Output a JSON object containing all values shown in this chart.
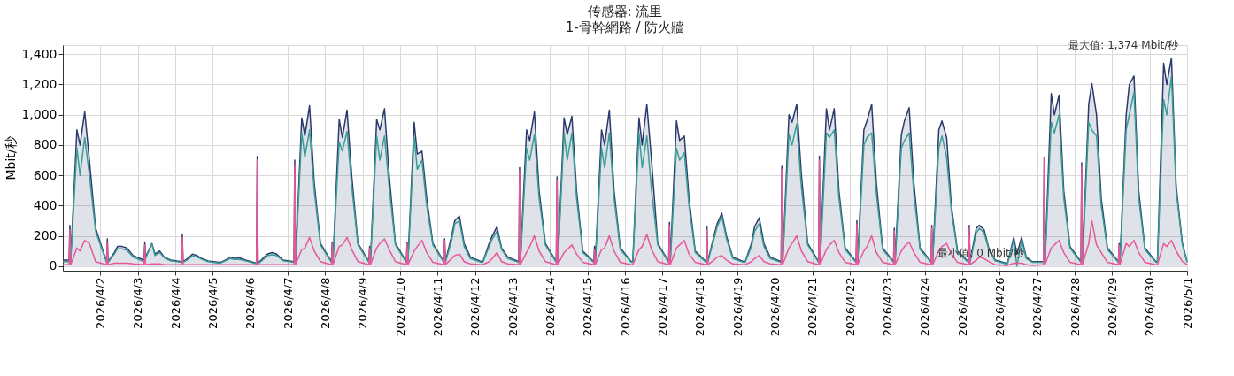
{
  "chart_data": {
    "type": "line",
    "title": "传感器: 流里",
    "subtitle": "1-骨幹網路 / 防火牆",
    "ylabel": "Mbit/秒",
    "x": [
      "2026-04-01T00:00",
      "2026-04-01T04:00",
      "2026-04-01T04:30",
      "2026-04-01T05:00",
      "2026-04-01T09:00",
      "2026-04-01T11:00",
      "2026-04-01T14:00",
      "2026-04-01T17:00",
      "2026-04-01T21:00",
      "2026-04-02T04:00",
      "2026-04-02T04:30",
      "2026-04-02T05:00",
      "2026-04-02T09:00",
      "2026-04-02T11:00",
      "2026-04-02T14:00",
      "2026-04-02T17:00",
      "2026-04-02T21:00",
      "2026-04-03T04:00",
      "2026-04-03T04:30",
      "2026-04-03T05:00",
      "2026-04-03T09:00",
      "2026-04-03T11:00",
      "2026-04-03T14:00",
      "2026-04-03T17:00",
      "2026-04-03T21:00",
      "2026-04-04T04:00",
      "2026-04-04T04:30",
      "2026-04-04T05:00",
      "2026-04-04T09:00",
      "2026-04-04T11:00",
      "2026-04-04T14:00",
      "2026-04-04T17:00",
      "2026-04-04T21:00",
      "2026-04-05T04:00",
      "2026-04-05T04:30",
      "2026-04-05T05:00",
      "2026-04-05T09:00",
      "2026-04-05T11:00",
      "2026-04-05T14:00",
      "2026-04-05T17:00",
      "2026-04-05T21:00",
      "2026-04-06T04:00",
      "2026-04-06T04:30",
      "2026-04-06T05:00",
      "2026-04-06T09:00",
      "2026-04-06T11:00",
      "2026-04-06T14:00",
      "2026-04-06T17:00",
      "2026-04-06T21:00",
      "2026-04-07T04:00",
      "2026-04-07T04:30",
      "2026-04-07T05:00",
      "2026-04-07T09:00",
      "2026-04-07T11:00",
      "2026-04-07T14:00",
      "2026-04-07T17:00",
      "2026-04-07T21:00",
      "2026-04-08T04:00",
      "2026-04-08T04:30",
      "2026-04-08T05:00",
      "2026-04-08T09:00",
      "2026-04-08T11:00",
      "2026-04-08T14:00",
      "2026-04-08T17:00",
      "2026-04-08T21:00",
      "2026-04-09T04:00",
      "2026-04-09T04:30",
      "2026-04-09T05:00",
      "2026-04-09T09:00",
      "2026-04-09T11:00",
      "2026-04-09T14:00",
      "2026-04-09T17:00",
      "2026-04-09T21:00",
      "2026-04-10T04:00",
      "2026-04-10T04:30",
      "2026-04-10T05:00",
      "2026-04-10T09:00",
      "2026-04-10T11:00",
      "2026-04-10T14:00",
      "2026-04-10T17:00",
      "2026-04-10T21:00",
      "2026-04-11T04:00",
      "2026-04-11T04:30",
      "2026-04-11T05:00",
      "2026-04-11T09:00",
      "2026-04-11T11:00",
      "2026-04-11T14:00",
      "2026-04-11T17:00",
      "2026-04-11T21:00",
      "2026-04-12T04:00",
      "2026-04-12T04:30",
      "2026-04-12T05:00",
      "2026-04-12T09:00",
      "2026-04-12T11:00",
      "2026-04-12T14:00",
      "2026-04-12T17:00",
      "2026-04-12T21:00",
      "2026-04-13T04:00",
      "2026-04-13T04:30",
      "2026-04-13T05:00",
      "2026-04-13T09:00",
      "2026-04-13T11:00",
      "2026-04-13T14:00",
      "2026-04-13T17:00",
      "2026-04-13T21:00",
      "2026-04-14T04:00",
      "2026-04-14T04:30",
      "2026-04-14T05:00",
      "2026-04-14T09:00",
      "2026-04-14T11:00",
      "2026-04-14T14:00",
      "2026-04-14T17:00",
      "2026-04-14T21:00",
      "2026-04-15T04:00",
      "2026-04-15T04:30",
      "2026-04-15T05:00",
      "2026-04-15T09:00",
      "2026-04-15T11:00",
      "2026-04-15T14:00",
      "2026-04-15T17:00",
      "2026-04-15T21:00",
      "2026-04-16T04:00",
      "2026-04-16T04:30",
      "2026-04-16T05:00",
      "2026-04-16T09:00",
      "2026-04-16T11:00",
      "2026-04-16T14:00",
      "2026-04-16T17:00",
      "2026-04-16T21:00",
      "2026-04-17T04:00",
      "2026-04-17T04:30",
      "2026-04-17T05:00",
      "2026-04-17T09:00",
      "2026-04-17T11:00",
      "2026-04-17T14:00",
      "2026-04-17T17:00",
      "2026-04-17T21:00",
      "2026-04-18T04:00",
      "2026-04-18T04:30",
      "2026-04-18T05:00",
      "2026-04-18T09:00",
      "2026-04-18T11:00",
      "2026-04-18T14:00",
      "2026-04-18T17:00",
      "2026-04-18T21:00",
      "2026-04-19T04:00",
      "2026-04-19T04:30",
      "2026-04-19T05:00",
      "2026-04-19T09:00",
      "2026-04-19T11:00",
      "2026-04-19T14:00",
      "2026-04-19T17:00",
      "2026-04-19T21:00",
      "2026-04-20T04:00",
      "2026-04-20T04:30",
      "2026-04-20T05:00",
      "2026-04-20T09:00",
      "2026-04-20T11:00",
      "2026-04-20T14:00",
      "2026-04-20T17:00",
      "2026-04-20T21:00",
      "2026-04-21T04:00",
      "2026-04-21T04:30",
      "2026-04-21T05:00",
      "2026-04-21T09:00",
      "2026-04-21T11:00",
      "2026-04-21T14:00",
      "2026-04-21T17:00",
      "2026-04-21T21:00",
      "2026-04-22T04:00",
      "2026-04-22T04:30",
      "2026-04-22T05:00",
      "2026-04-22T09:00",
      "2026-04-22T11:00",
      "2026-04-22T14:00",
      "2026-04-22T17:00",
      "2026-04-22T21:00",
      "2026-04-23T04:00",
      "2026-04-23T04:30",
      "2026-04-23T05:00",
      "2026-04-23T09:00",
      "2026-04-23T11:00",
      "2026-04-23T14:00",
      "2026-04-23T17:00",
      "2026-04-23T21:00",
      "2026-04-24T04:00",
      "2026-04-24T04:30",
      "2026-04-24T05:00",
      "2026-04-24T09:00",
      "2026-04-24T11:00",
      "2026-04-24T14:00",
      "2026-04-24T17:00",
      "2026-04-24T21:00",
      "2026-04-25T04:00",
      "2026-04-25T04:30",
      "2026-04-25T05:00",
      "2026-04-25T09:00",
      "2026-04-25T11:00",
      "2026-04-25T14:00",
      "2026-04-25T17:00",
      "2026-04-25T21:00",
      "2026-04-26T04:00",
      "2026-04-26T04:30",
      "2026-04-26T05:00",
      "2026-04-26T09:00",
      "2026-04-26T11:00",
      "2026-04-26T14:00",
      "2026-04-26T17:00",
      "2026-04-26T21:00",
      "2026-04-27T04:00",
      "2026-04-27T04:30",
      "2026-04-27T05:00",
      "2026-04-27T09:00",
      "2026-04-27T11:00",
      "2026-04-27T14:00",
      "2026-04-27T17:00",
      "2026-04-27T21:00",
      "2026-04-28T04:00",
      "2026-04-28T04:30",
      "2026-04-28T05:00",
      "2026-04-28T09:00",
      "2026-04-28T11:00",
      "2026-04-28T14:00",
      "2026-04-28T17:00",
      "2026-04-28T21:00",
      "2026-04-29T04:00",
      "2026-04-29T04:30",
      "2026-04-29T05:00",
      "2026-04-29T09:00",
      "2026-04-29T11:00",
      "2026-04-29T14:00",
      "2026-04-29T17:00",
      "2026-04-29T21:00",
      "2026-04-30T04:00",
      "2026-04-30T04:30",
      "2026-04-30T05:00",
      "2026-04-30T09:00",
      "2026-04-30T11:00",
      "2026-04-30T14:00",
      "2026-04-30T17:00",
      "2026-04-30T21:00",
      "2026-05-01T00:00"
    ],
    "series": [
      {
        "type": "area",
        "color": "#2b3a6b",
        "values": [
          40,
          40,
          270,
          40,
          900,
          800,
          1020,
          700,
          250,
          30,
          180,
          30,
          90,
          130,
          130,
          120,
          70,
          40,
          160,
          60,
          150,
          80,
          100,
          60,
          40,
          30,
          210,
          30,
          60,
          80,
          70,
          50,
          35,
          25,
          25,
          25,
          45,
          60,
          50,
          55,
          40,
          20,
          725,
          20,
          60,
          80,
          90,
          80,
          40,
          30,
          700,
          30,
          980,
          860,
          1060,
          550,
          150,
          30,
          160,
          30,
          970,
          850,
          1030,
          600,
          150,
          30,
          130,
          30,
          970,
          900,
          1040,
          600,
          150,
          30,
          160,
          30,
          950,
          740,
          760,
          450,
          150,
          30,
          180,
          30,
          200,
          300,
          330,
          150,
          60,
          30,
          30,
          30,
          150,
          200,
          260,
          120,
          60,
          30,
          650,
          30,
          900,
          830,
          1020,
          500,
          150,
          30,
          590,
          30,
          980,
          870,
          990,
          500,
          100,
          30,
          130,
          30,
          900,
          800,
          1030,
          500,
          120,
          30,
          30,
          30,
          980,
          800,
          1070,
          700,
          150,
          30,
          290,
          30,
          960,
          830,
          860,
          450,
          100,
          30,
          260,
          30,
          200,
          280,
          350,
          200,
          60,
          30,
          30,
          30,
          150,
          260,
          320,
          150,
          60,
          30,
          660,
          30,
          1000,
          950,
          1070,
          600,
          150,
          30,
          727,
          30,
          1040,
          900,
          1040,
          500,
          120,
          30,
          300,
          30,
          900,
          960,
          1069,
          550,
          120,
          30,
          250,
          30,
          870,
          960,
          1047,
          550,
          120,
          30,
          270,
          30,
          900,
          959,
          850,
          400,
          100,
          30,
          270,
          30,
          250,
          270,
          240,
          120,
          40,
          20,
          20,
          20,
          190,
          80,
          190,
          60,
          30,
          30,
          720,
          30,
          1140,
          1000,
          1130,
          500,
          130,
          30,
          683,
          30,
          1070,
          1206,
          1000,
          450,
          120,
          30,
          150,
          30,
          1000,
          1200,
          1256,
          500,
          120,
          30,
          30,
          30,
          1340,
          1200,
          1374,
          530,
          150,
          30
        ]
      },
      {
        "color": "#3a9d96",
        "values": [
          30,
          30,
          30,
          30,
          780,
          600,
          850,
          600,
          230,
          25,
          25,
          25,
          80,
          115,
          115,
          105,
          60,
          30,
          30,
          50,
          150,
          70,
          90,
          55,
          35,
          25,
          25,
          25,
          50,
          70,
          60,
          45,
          30,
          20,
          20,
          20,
          40,
          50,
          45,
          45,
          35,
          15,
          15,
          15,
          50,
          70,
          75,
          70,
          35,
          25,
          25,
          25,
          880,
          720,
          900,
          500,
          140,
          25,
          25,
          25,
          820,
          760,
          890,
          530,
          140,
          25,
          25,
          25,
          860,
          700,
          860,
          520,
          140,
          25,
          25,
          25,
          850,
          640,
          700,
          400,
          140,
          25,
          25,
          25,
          170,
          280,
          300,
          130,
          50,
          25,
          25,
          25,
          130,
          180,
          230,
          110,
          50,
          25,
          25,
          25,
          780,
          700,
          870,
          450,
          140,
          25,
          25,
          25,
          880,
          700,
          880,
          450,
          90,
          25,
          25,
          25,
          780,
          650,
          880,
          450,
          110,
          25,
          25,
          25,
          880,
          650,
          860,
          500,
          140,
          25,
          25,
          25,
          780,
          700,
          750,
          400,
          90,
          25,
          25,
          25,
          180,
          260,
          330,
          180,
          50,
          25,
          25,
          25,
          130,
          230,
          280,
          130,
          50,
          25,
          25,
          25,
          870,
          800,
          940,
          520,
          140,
          25,
          25,
          25,
          880,
          850,
          900,
          450,
          110,
          25,
          25,
          25,
          800,
          850,
          880,
          480,
          110,
          25,
          25,
          25,
          780,
          830,
          880,
          480,
          110,
          25,
          25,
          25,
          780,
          860,
          720,
          370,
          90,
          25,
          25,
          25,
          220,
          250,
          220,
          110,
          35,
          15,
          15,
          15,
          170,
          0,
          170,
          50,
          25,
          25,
          25,
          25,
          950,
          880,
          1000,
          450,
          120,
          25,
          25,
          25,
          950,
          900,
          860,
          400,
          110,
          25,
          25,
          25,
          900,
          1000,
          1150,
          450,
          110,
          25,
          25,
          25,
          1100,
          1000,
          1255,
          500,
          140,
          25
        ]
      },
      {
        "color": "#e8579a",
        "values": [
          10,
          10,
          240,
          10,
          120,
          100,
          170,
          150,
          30,
          10,
          160,
          10,
          20,
          20,
          20,
          20,
          15,
          10,
          140,
          10,
          15,
          15,
          15,
          10,
          10,
          10,
          190,
          10,
          10,
          10,
          10,
          10,
          10,
          10,
          10,
          10,
          10,
          10,
          10,
          10,
          10,
          10,
          700,
          10,
          10,
          10,
          10,
          10,
          10,
          10,
          670,
          10,
          110,
          120,
          190,
          100,
          30,
          10,
          150,
          10,
          130,
          140,
          190,
          110,
          30,
          10,
          120,
          10,
          120,
          150,
          180,
          110,
          30,
          10,
          150,
          10,
          100,
          130,
          170,
          90,
          25,
          10,
          170,
          10,
          50,
          70,
          80,
          30,
          15,
          10,
          10,
          10,
          30,
          50,
          90,
          30,
          15,
          10,
          630,
          10,
          90,
          130,
          200,
          100,
          30,
          10,
          570,
          10,
          90,
          110,
          140,
          80,
          25,
          10,
          110,
          10,
          110,
          120,
          200,
          100,
          25,
          10,
          10,
          10,
          110,
          130,
          210,
          110,
          30,
          10,
          270,
          10,
          120,
          140,
          170,
          80,
          25,
          10,
          240,
          10,
          40,
          60,
          70,
          40,
          15,
          10,
          10,
          10,
          30,
          50,
          70,
          30,
          15,
          10,
          640,
          10,
          120,
          150,
          200,
          100,
          30,
          10,
          700,
          10,
          110,
          140,
          170,
          90,
          25,
          10,
          280,
          10,
          100,
          130,
          200,
          90,
          25,
          10,
          230,
          10,
          100,
          130,
          160,
          90,
          25,
          10,
          250,
          10,
          100,
          130,
          150,
          80,
          25,
          10,
          250,
          10,
          40,
          60,
          50,
          30,
          10,
          5,
          5,
          5,
          20,
          20,
          20,
          10,
          5,
          10,
          716,
          10,
          120,
          140,
          170,
          90,
          25,
          10,
          660,
          10,
          150,
          300,
          140,
          90,
          25,
          10,
          140,
          10,
          150,
          130,
          170,
          90,
          25,
          10,
          10,
          10,
          150,
          130,
          170,
          100,
          30,
          10
        ]
      }
    ],
    "xlim": [
      "2026-04-01T00:00",
      "2026-05-01T00:00"
    ],
    "xticks": [
      {
        "value": "2026-04-02",
        "label": "2026/4/2"
      },
      {
        "value": "2026-04-03",
        "label": "2026/4/3"
      },
      {
        "value": "2026-04-04",
        "label": "2026/4/4"
      },
      {
        "value": "2026-04-05",
        "label": "2026/4/5"
      },
      {
        "value": "2026-04-06",
        "label": "2026/4/6"
      },
      {
        "value": "2026-04-07",
        "label": "2026/4/7"
      },
      {
        "value": "2026-04-08",
        "label": "2026/4/8"
      },
      {
        "value": "2026-04-09",
        "label": "2026/4/9"
      },
      {
        "value": "2026-04-10",
        "label": "2026/4/10"
      },
      {
        "value": "2026-04-11",
        "label": "2026/4/11"
      },
      {
        "value": "2026-04-12",
        "label": "2026/4/12"
      },
      {
        "value": "2026-04-13",
        "label": "2026/4/13"
      },
      {
        "value": "2026-04-14",
        "label": "2026/4/14"
      },
      {
        "value": "2026-04-15",
        "label": "2026/4/15"
      },
      {
        "value": "2026-04-16",
        "label": "2026/4/16"
      },
      {
        "value": "2026-04-17",
        "label": "2026/4/17"
      },
      {
        "value": "2026-04-18",
        "label": "2026/4/18"
      },
      {
        "value": "2026-04-19",
        "label": "2026/4/19"
      },
      {
        "value": "2026-04-20",
        "label": "2026/4/20"
      },
      {
        "value": "2026-04-21",
        "label": "2026/4/21"
      },
      {
        "value": "2026-04-22",
        "label": "2026/4/22"
      },
      {
        "value": "2026-04-23",
        "label": "2026/4/23"
      },
      {
        "value": "2026-04-24",
        "label": "2026/4/24"
      },
      {
        "value": "2026-04-25",
        "label": "2026/4/25"
      },
      {
        "value": "2026-04-26",
        "label": "2026/4/26"
      },
      {
        "value": "2026-04-27",
        "label": "2026/4/27"
      },
      {
        "value": "2026-04-28",
        "label": "2026/4/28"
      },
      {
        "value": "2026-04-29",
        "label": "2026/4/29"
      },
      {
        "value": "2026-04-30",
        "label": "2026/4/30"
      },
      {
        "value": "2026-05-01",
        "label": "2026/5/1"
      }
    ],
    "ylim": [
      -30,
      1460
    ],
    "yticks": [
      {
        "value": 0,
        "label": "0"
      },
      {
        "value": 200,
        "label": "200"
      },
      {
        "value": 400,
        "label": "400"
      },
      {
        "value": 600,
        "label": "600"
      },
      {
        "value": 800,
        "label": "800"
      },
      {
        "value": 1000,
        "label": "1,000"
      },
      {
        "value": 1200,
        "label": "1,200"
      },
      {
        "value": 1400,
        "label": "1,400"
      }
    ],
    "grid": true,
    "annotations": [
      {
        "text": "最大值: 1,374 Mbit/秒",
        "x": "2026-04-30T14:00",
        "y": 1374
      },
      {
        "text": "最小值: 0 Mbit/秒",
        "x": "2026-04-26T11:00",
        "y": 0
      }
    ]
  }
}
